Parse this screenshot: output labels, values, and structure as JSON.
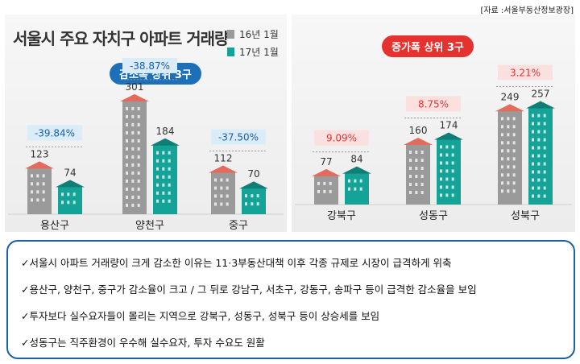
{
  "source": "[자료 :서울부동산정보광장]",
  "title": "서울시 주요 자치구 아파트 거래량",
  "legend": [
    {
      "label": "16년 1월",
      "color": "#9a9a9a"
    },
    {
      "label": "17년 1월",
      "color": "#16a397"
    }
  ],
  "colors": {
    "up_pill": "#e6322f",
    "down_pill": "#1d6fb7",
    "pct_down_bg": "#d9ecf7",
    "pct_up_bg": "#fbe0e0"
  },
  "chart_data": [
    {
      "type": "bar",
      "title": "감소폭 상위 3구",
      "categories": [
        "용산구",
        "양천구",
        "중구"
      ],
      "series": [
        {
          "name": "16년 1월",
          "values": [
            123,
            301,
            112
          ]
        },
        {
          "name": "17년 1월",
          "values": [
            74,
            184,
            70
          ]
        }
      ],
      "annotations": [
        "-39.84%",
        "-38.87%",
        "-37.50%"
      ],
      "ylim": [
        0,
        320
      ]
    },
    {
      "type": "bar",
      "title": "증가폭 상위 3구",
      "categories": [
        "강북구",
        "성동구",
        "성북구"
      ],
      "series": [
        {
          "name": "16년 1월",
          "values": [
            77,
            160,
            249
          ]
        },
        {
          "name": "17년 1월",
          "values": [
            84,
            174,
            257
          ]
        }
      ],
      "annotations": [
        "9.09%",
        "8.75%",
        "3.21%"
      ],
      "ylim": [
        0,
        320
      ]
    }
  ],
  "notes": [
    "✓서울시 아파트 거래량이 크게 감소한 이유는 11·3부동산대책 이후 각종 규제로 시장이 급격하게 위축",
    "✓용산구,  양천구, 중구가 감소율이 크고 / 그 뒤로 강남구, 서초구, 강동구, 송파구 등이 급격한 감소율을 보임",
    "✓투자보다 실수요자들이 몰리는 지역으로 강북구, 성동구, 성북구 등이 상승세를 보임",
    "✓성동구는 직주환경이 우수해 실수요자, 투자 수요도 원활"
  ]
}
